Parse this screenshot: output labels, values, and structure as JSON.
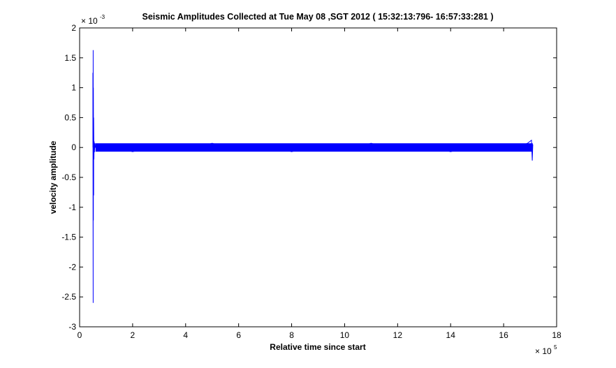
{
  "chart_data": {
    "type": "line",
    "title": "Seismic Amplitudes Collected at Tue May 08 ,SGT 2012 (  15:32:13:796- 16:57:33:281 )",
    "xlabel": "Relative time since start",
    "ylabel": "velocity amplitude",
    "x_exponent": "5",
    "y_exponent": "-3",
    "xlim": [
      0,
      18
    ],
    "ylim": [
      -3,
      2
    ],
    "x_ticks": [
      0,
      2,
      4,
      6,
      8,
      10,
      12,
      14,
      16,
      18
    ],
    "x_tick_labels": [
      "0",
      "2",
      "4",
      "6",
      "8",
      "10",
      "12",
      "14",
      "16",
      "18"
    ],
    "y_ticks": [
      -3,
      -2.5,
      -2,
      -1.5,
      -1,
      -0.5,
      0,
      0.5,
      1,
      1.5,
      2
    ],
    "y_tick_labels": [
      "-3",
      "-2.5",
      "-2",
      "-1.5",
      "-1",
      "-0.5",
      "0",
      "0.5",
      "1",
      "1.5",
      "2"
    ],
    "series_color": "#0000ff",
    "grid": false,
    "series": [
      {
        "x": [
          0.5,
          0.5,
          0.51,
          0.51,
          0.52,
          0.52,
          0.53,
          0.53,
          0.54,
          0.55,
          0.56,
          0.58,
          0.6,
          1.0,
          2.0,
          3.0,
          4.0,
          5.0,
          6.0,
          7.0,
          8.0,
          9.0,
          10.0,
          11.0,
          12.0,
          13.0,
          14.0,
          15.0,
          16.0,
          16.9,
          17.05,
          17.08,
          17.1
        ],
        "y": [
          0,
          1.25,
          -2.6,
          1.63,
          -1.22,
          1.0,
          -0.8,
          0.5,
          -0.2,
          0.1,
          -0.08,
          0.07,
          0,
          0.06,
          -0.07,
          0.06,
          -0.06,
          0.07,
          -0.06,
          0.06,
          -0.07,
          0.06,
          -0.06,
          0.07,
          -0.06,
          0.06,
          -0.07,
          0.06,
          -0.06,
          0.07,
          0.12,
          -0.22,
          0.05
        ]
      }
    ]
  }
}
